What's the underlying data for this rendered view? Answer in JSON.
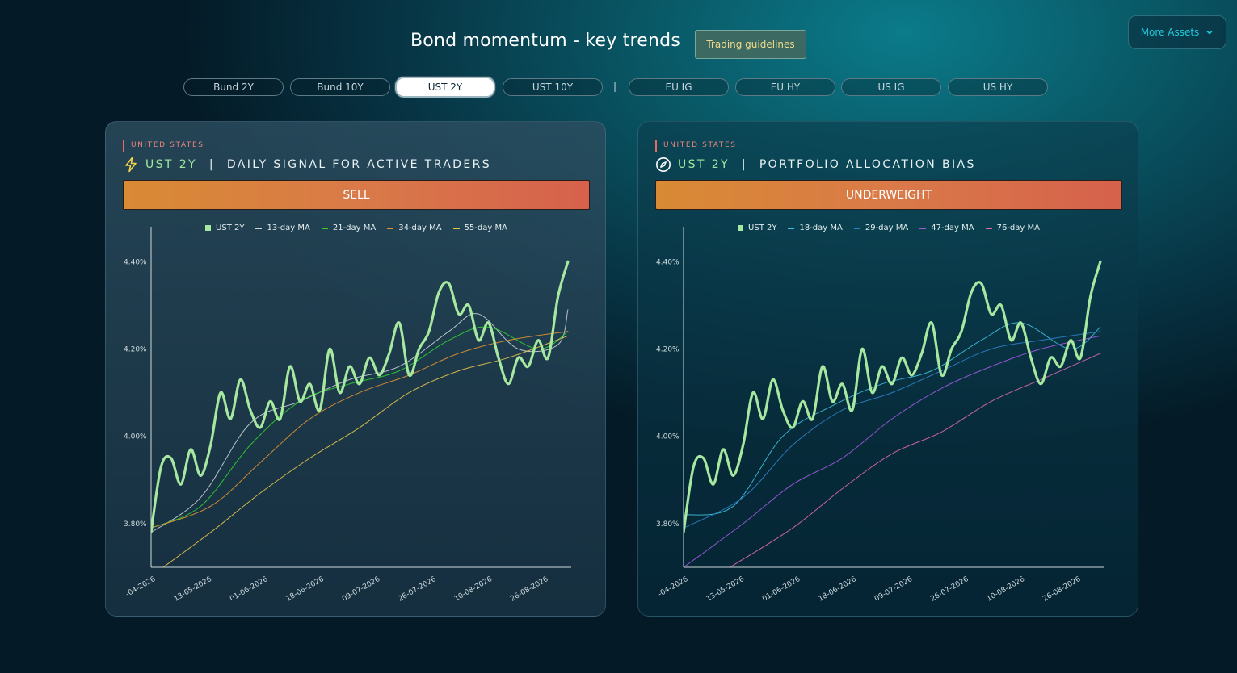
{
  "header": {
    "title": "Bond momentum - key trends",
    "guide_label": "Trading guidelines",
    "more_label": "More Assets"
  },
  "tabs": [
    {
      "label": "Bund 2Y",
      "active": false
    },
    {
      "label": "Bund 10Y",
      "active": false
    },
    {
      "label": "UST 2Y",
      "active": true
    },
    {
      "label": "UST 10Y",
      "active": false
    },
    {
      "label": "EU IG",
      "active": false
    },
    {
      "label": "EU HY",
      "active": false
    },
    {
      "label": "US IG",
      "active": false
    },
    {
      "label": "US HY",
      "active": false
    }
  ],
  "tab_separator": "|",
  "cards": [
    {
      "region": "UNITED STATES",
      "ticker": "UST 2Y",
      "title_sep": " | ",
      "subtitle": "DAILY SIGNAL FOR ACTIVE TRADERS",
      "icon": "lightning-icon",
      "signal": "SELL"
    },
    {
      "region": "UNITED STATES",
      "ticker": "UST 2Y",
      "title_sep": " | ",
      "subtitle": "PORTFOLIO ALLOCATION BIAS",
      "icon": "compass-icon",
      "signal": "UNDERWEIGHT"
    }
  ],
  "chart_data": [
    {
      "type": "line",
      "xlabel": "",
      "ylabel": "",
      "x_range": [
        "27-04-2026",
        "01-09-2026"
      ],
      "ylim": [
        3.7,
        4.48
      ],
      "yticks": [
        "3.80%",
        "4.00%",
        "4.20%",
        "4.40%"
      ],
      "ytick_values": [
        3.8,
        4.0,
        4.2,
        4.4
      ],
      "xticks": [
        "-04-2026",
        "13-05-2026",
        "01-06-2026",
        "18-06-2026",
        "09-07-2026",
        "26-07-2026",
        "10-08-2026",
        "26-08-2026"
      ],
      "grid": false,
      "legend_position": "top",
      "series": [
        {
          "name": "UST 2Y",
          "color": "#a6e8a0",
          "marker": "square",
          "points": [
            [
              "27-04-2026",
              3.78
            ],
            [
              "30-04-2026",
              3.93
            ],
            [
              "03-05-2026",
              3.95
            ],
            [
              "06-05-2026",
              3.89
            ],
            [
              "09-05-2026",
              3.97
            ],
            [
              "12-05-2026",
              3.91
            ],
            [
              "15-05-2026",
              3.98
            ],
            [
              "18-05-2026",
              4.1
            ],
            [
              "21-05-2026",
              4.04
            ],
            [
              "24-05-2026",
              4.13
            ],
            [
              "27-05-2026",
              4.06
            ],
            [
              "30-05-2026",
              4.02
            ],
            [
              "02-06-2026",
              4.08
            ],
            [
              "05-06-2026",
              4.04
            ],
            [
              "08-06-2026",
              4.16
            ],
            [
              "11-06-2026",
              4.08
            ],
            [
              "14-06-2026",
              4.12
            ],
            [
              "17-06-2026",
              4.06
            ],
            [
              "20-06-2026",
              4.2
            ],
            [
              "23-06-2026",
              4.1
            ],
            [
              "26-06-2026",
              4.16
            ],
            [
              "29-06-2026",
              4.12
            ],
            [
              "02-07-2026",
              4.18
            ],
            [
              "05-07-2026",
              4.14
            ],
            [
              "08-07-2026",
              4.19
            ],
            [
              "11-07-2026",
              4.26
            ],
            [
              "14-07-2026",
              4.14
            ],
            [
              "17-07-2026",
              4.2
            ],
            [
              "20-07-2026",
              4.24
            ],
            [
              "23-07-2026",
              4.33
            ],
            [
              "26-07-2026",
              4.35
            ],
            [
              "29-07-2026",
              4.28
            ],
            [
              "01-08-2026",
              4.3
            ],
            [
              "04-08-2026",
              4.22
            ],
            [
              "07-08-2026",
              4.26
            ],
            [
              "10-08-2026",
              4.18
            ],
            [
              "13-08-2026",
              4.12
            ],
            [
              "16-08-2026",
              4.18
            ],
            [
              "19-08-2026",
              4.16
            ],
            [
              "22-08-2026",
              4.22
            ],
            [
              "25-08-2026",
              4.18
            ],
            [
              "28-08-2026",
              4.32
            ],
            [
              "31-08-2026",
              4.4
            ]
          ]
        },
        {
          "name": "13-day MA",
          "color": "#c9d3d8",
          "points": [
            [
              "27-04-2026",
              3.78
            ],
            [
              "12-05-2026",
              3.86
            ],
            [
              "27-05-2026",
              4.03
            ],
            [
              "11-06-2026",
              4.08
            ],
            [
              "26-06-2026",
              4.13
            ],
            [
              "11-07-2026",
              4.16
            ],
            [
              "26-07-2026",
              4.24
            ],
            [
              "04-08-2026",
              4.28
            ],
            [
              "16-08-2026",
              4.2
            ],
            [
              "28-08-2026",
              4.21
            ],
            [
              "31-08-2026",
              4.29
            ]
          ]
        },
        {
          "name": "21-day MA",
          "color": "#2fd02f",
          "points": [
            [
              "27-04-2026",
              3.79
            ],
            [
              "12-05-2026",
              3.84
            ],
            [
              "27-05-2026",
              3.98
            ],
            [
              "11-06-2026",
              4.08
            ],
            [
              "26-06-2026",
              4.12
            ],
            [
              "11-07-2026",
              4.15
            ],
            [
              "26-07-2026",
              4.22
            ],
            [
              "07-08-2026",
              4.25
            ],
            [
              "22-08-2026",
              4.2
            ],
            [
              "31-08-2026",
              4.24
            ]
          ]
        },
        {
          "name": "34-day MA",
          "color": "#e3922f",
          "points": [
            [
              "27-04-2026",
              3.79
            ],
            [
              "15-05-2026",
              3.84
            ],
            [
              "30-05-2026",
              3.94
            ],
            [
              "14-06-2026",
              4.04
            ],
            [
              "29-06-2026",
              4.1
            ],
            [
              "14-07-2026",
              4.14
            ],
            [
              "29-07-2026",
              4.19
            ],
            [
              "13-08-2026",
              4.22
            ],
            [
              "31-08-2026",
              4.24
            ]
          ]
        },
        {
          "name": "55-day MA",
          "color": "#e6c44a",
          "points": [
            [
              "27-04-2026",
              3.68
            ],
            [
              "15-05-2026",
              3.78
            ],
            [
              "30-05-2026",
              3.87
            ],
            [
              "14-06-2026",
              3.95
            ],
            [
              "29-06-2026",
              4.02
            ],
            [
              "14-07-2026",
              4.1
            ],
            [
              "29-07-2026",
              4.15
            ],
            [
              "13-08-2026",
              4.18
            ],
            [
              "31-08-2026",
              4.23
            ]
          ]
        }
      ]
    },
    {
      "type": "line",
      "xlabel": "",
      "ylabel": "",
      "x_range": [
        "27-04-2026",
        "01-09-2026"
      ],
      "ylim": [
        3.7,
        4.48
      ],
      "yticks": [
        "3.80%",
        "4.00%",
        "4.20%",
        "4.40%"
      ],
      "ytick_values": [
        3.8,
        4.0,
        4.2,
        4.4
      ],
      "xticks": [
        "-04-2026",
        "13-05-2026",
        "01-06-2026",
        "18-06-2026",
        "09-07-2026",
        "26-07-2026",
        "10-08-2026",
        "26-08-2026"
      ],
      "grid": false,
      "legend_position": "top",
      "series": [
        {
          "name": "UST 2Y",
          "color": "#a6e8a0",
          "marker": "square",
          "points": [
            [
              "27-04-2026",
              3.78
            ],
            [
              "30-04-2026",
              3.93
            ],
            [
              "03-05-2026",
              3.95
            ],
            [
              "06-05-2026",
              3.89
            ],
            [
              "09-05-2026",
              3.97
            ],
            [
              "12-05-2026",
              3.91
            ],
            [
              "15-05-2026",
              3.98
            ],
            [
              "18-05-2026",
              4.1
            ],
            [
              "21-05-2026",
              4.04
            ],
            [
              "24-05-2026",
              4.13
            ],
            [
              "27-05-2026",
              4.06
            ],
            [
              "30-05-2026",
              4.02
            ],
            [
              "02-06-2026",
              4.08
            ],
            [
              "05-06-2026",
              4.04
            ],
            [
              "08-06-2026",
              4.16
            ],
            [
              "11-06-2026",
              4.08
            ],
            [
              "14-06-2026",
              4.12
            ],
            [
              "17-06-2026",
              4.06
            ],
            [
              "20-06-2026",
              4.2
            ],
            [
              "23-06-2026",
              4.1
            ],
            [
              "26-06-2026",
              4.16
            ],
            [
              "29-06-2026",
              4.12
            ],
            [
              "02-07-2026",
              4.18
            ],
            [
              "05-07-2026",
              4.14
            ],
            [
              "08-07-2026",
              4.19
            ],
            [
              "11-07-2026",
              4.26
            ],
            [
              "14-07-2026",
              4.14
            ],
            [
              "17-07-2026",
              4.2
            ],
            [
              "20-07-2026",
              4.24
            ],
            [
              "23-07-2026",
              4.33
            ],
            [
              "26-07-2026",
              4.35
            ],
            [
              "29-07-2026",
              4.28
            ],
            [
              "01-08-2026",
              4.3
            ],
            [
              "04-08-2026",
              4.22
            ],
            [
              "07-08-2026",
              4.26
            ],
            [
              "10-08-2026",
              4.18
            ],
            [
              "13-08-2026",
              4.12
            ],
            [
              "16-08-2026",
              4.18
            ],
            [
              "19-08-2026",
              4.16
            ],
            [
              "22-08-2026",
              4.22
            ],
            [
              "25-08-2026",
              4.18
            ],
            [
              "28-08-2026",
              4.32
            ],
            [
              "31-08-2026",
              4.4
            ]
          ]
        },
        {
          "name": "18-day MA",
          "color": "#3ec0dc",
          "points": [
            [
              "27-04-2026",
              3.82
            ],
            [
              "12-05-2026",
              3.84
            ],
            [
              "27-05-2026",
              4.0
            ],
            [
              "11-06-2026",
              4.07
            ],
            [
              "26-06-2026",
              4.12
            ],
            [
              "11-07-2026",
              4.15
            ],
            [
              "26-07-2026",
              4.22
            ],
            [
              "07-08-2026",
              4.26
            ],
            [
              "22-08-2026",
              4.2
            ],
            [
              "31-08-2026",
              4.25
            ]
          ]
        },
        {
          "name": "29-day MA",
          "color": "#2d7fc8",
          "points": [
            [
              "27-04-2026",
              3.79
            ],
            [
              "15-05-2026",
              3.86
            ],
            [
              "30-05-2026",
              3.98
            ],
            [
              "14-06-2026",
              4.06
            ],
            [
              "29-06-2026",
              4.1
            ],
            [
              "14-07-2026",
              4.15
            ],
            [
              "29-07-2026",
              4.2
            ],
            [
              "13-08-2026",
              4.22
            ],
            [
              "31-08-2026",
              4.24
            ]
          ]
        },
        {
          "name": "47-day MA",
          "color": "#a05ae0",
          "points": [
            [
              "27-04-2026",
              3.7
            ],
            [
              "15-05-2026",
              3.8
            ],
            [
              "30-05-2026",
              3.89
            ],
            [
              "14-06-2026",
              3.95
            ],
            [
              "29-06-2026",
              4.04
            ],
            [
              "14-07-2026",
              4.11
            ],
            [
              "29-07-2026",
              4.16
            ],
            [
              "13-08-2026",
              4.2
            ],
            [
              "31-08-2026",
              4.23
            ]
          ]
        },
        {
          "name": "76-day MA",
          "color": "#e068b0",
          "points": [
            [
              "11-05-2026",
              3.7
            ],
            [
              "30-05-2026",
              3.79
            ],
            [
              "14-06-2026",
              3.88
            ],
            [
              "29-06-2026",
              3.96
            ],
            [
              "14-07-2026",
              4.01
            ],
            [
              "29-07-2026",
              4.08
            ],
            [
              "13-08-2026",
              4.13
            ],
            [
              "31-08-2026",
              4.19
            ]
          ]
        }
      ]
    }
  ]
}
